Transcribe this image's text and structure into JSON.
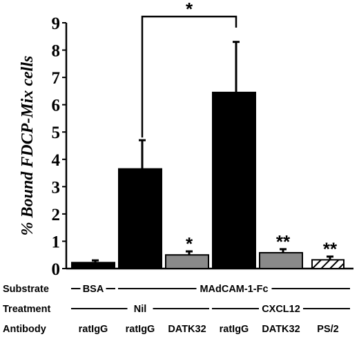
{
  "chart_data": {
    "type": "bar",
    "ylabel": "% Bound FDCP-Mix cells",
    "ylim": [
      0,
      9
    ],
    "yticks": [
      "0",
      "1",
      "2",
      "3",
      "4",
      "5",
      "6",
      "7",
      "8",
      "9"
    ],
    "bars": [
      {
        "value": 0.22,
        "error": 0.08,
        "fill": "black",
        "significance": ""
      },
      {
        "value": 3.65,
        "error": 1.05,
        "fill": "black",
        "significance": ""
      },
      {
        "value": 0.5,
        "error": 0.13,
        "fill": "gray",
        "significance": "*"
      },
      {
        "value": 6.45,
        "error": 1.85,
        "fill": "black",
        "significance": ""
      },
      {
        "value": 0.58,
        "error": 0.13,
        "fill": "gray",
        "significance": "**"
      },
      {
        "value": 0.32,
        "error": 0.12,
        "fill": "hatched",
        "significance": "**"
      }
    ],
    "comparison": {
      "from": 1,
      "to": 3,
      "label": "*"
    },
    "rows": [
      {
        "label": "Substrate",
        "groups": [
          {
            "text": "BSA",
            "start": 0,
            "end": 0
          },
          {
            "text": "MAdCAM-1-Fc",
            "start": 1,
            "end": 5
          }
        ]
      },
      {
        "label": "Treatment",
        "groups": [
          {
            "text": "Nil",
            "start": 0,
            "end": 2
          },
          {
            "text": "CXCL12",
            "start": 3,
            "end": 5
          }
        ]
      },
      {
        "label": "Antibody",
        "items": [
          "ratIgG",
          "ratIgG",
          "DATK32",
          "ratIgG",
          "DATK32",
          "PS/2"
        ]
      }
    ],
    "colors": {
      "black": "#000000",
      "gray": "#8a8a8a",
      "axis": "#000000"
    }
  }
}
